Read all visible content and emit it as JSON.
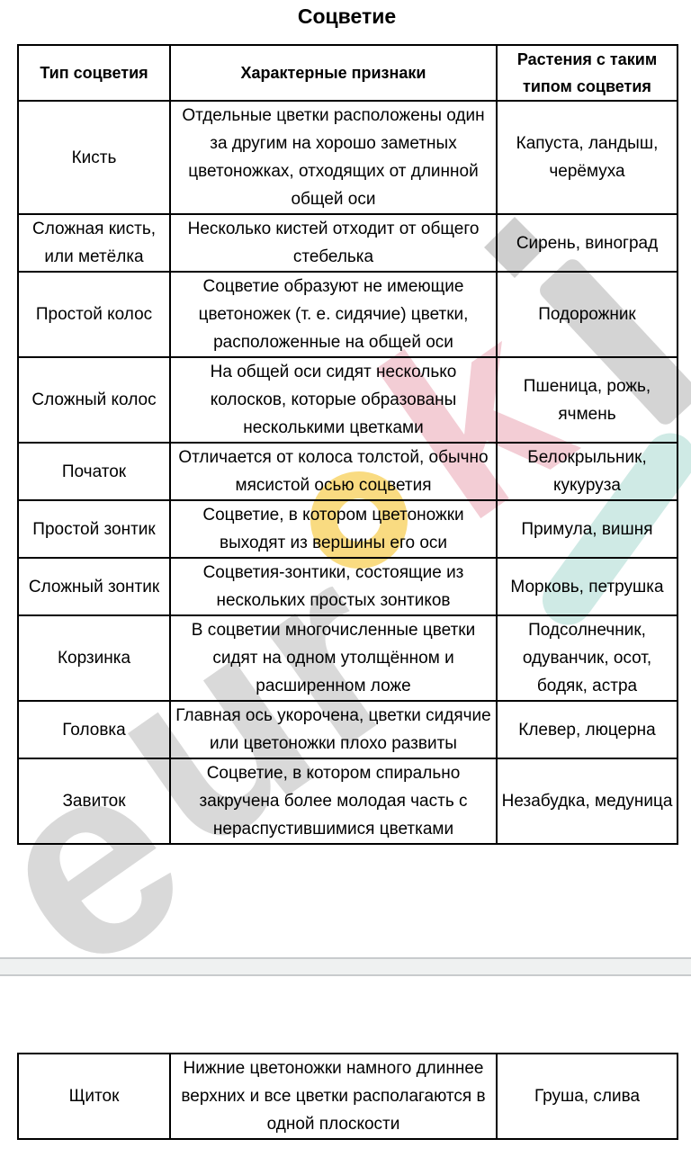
{
  "title": "Соцветие",
  "table": {
    "headers": {
      "type": "Тип соцветия",
      "features": "Характерные признаки",
      "plants": "Растения с таким типом соцветия"
    },
    "rows": [
      {
        "type": "Кисть",
        "features": "Отдельные цветки расположены один за другим на хорошо заметных цветоножках, отходящих от длинной общей оси",
        "plants": "Капуста, ландыш, черёмуха"
      },
      {
        "type": "Сложная кисть, или метёлка",
        "features": "Несколько кистей отходит от общего стебелька",
        "plants": "Сирень, виноград"
      },
      {
        "type": "Простой колос",
        "features": "Соцветие образуют не имеющие цветоножек (т. е. сидячие) цветки, расположенные на общей оси",
        "plants": "Подорожник"
      },
      {
        "type": "Сложный колос",
        "features": "На общей оси сидят несколько колосков, которые образованы несколькими цветками",
        "plants": "Пшеница, рожь, ячмень"
      },
      {
        "type": "Початок",
        "features": "Отличается от колоса толстой, обычно мясистой осью соцветия",
        "plants": "Белокрыльник, кукуруза"
      },
      {
        "type": "Простой зонтик",
        "features": "Соцветие, в котором цветоножки выходят из вершины его оси",
        "plants": "Примула, вишня"
      },
      {
        "type": "Сложный зонтик",
        "features": "Соцветия-зонтики, состоящие из нескольких простых зонтиков",
        "plants": "Морковь, петрушка"
      },
      {
        "type": "Корзинка",
        "features": "В соцветии многочисленные цветки сидят на одном утолщённом и расширенном ложе",
        "plants": "Подсолнечник, одуванчик, осот, бодяк, астра"
      },
      {
        "type": "Головка",
        "features": "Главная ось укорочена, цветки сидячие или цветоножки плохо развиты",
        "plants": "Клевер, люцерна"
      },
      {
        "type": "Завиток",
        "features": "Соцветие, в котором спирально закручена более молодая часть с нераспустившимися цветками",
        "plants": "Незабудка, медуница"
      }
    ]
  },
  "table2": {
    "rows": [
      {
        "type": "Щиток",
        "features": "Нижние цветоножки намного длиннее верхних и все цветки располагаются в одной плоскости",
        "plants": "Груша, слива"
      }
    ]
  },
  "watermark": {
    "text": "euroki",
    "letters": [
      "e",
      "u",
      "r",
      "o",
      "k",
      "i"
    ],
    "colors": {
      "gray": "#d9d9d9",
      "yellow": "#f8d261",
      "pink": "#f3cdd5",
      "teal": "#cfeae5"
    }
  }
}
